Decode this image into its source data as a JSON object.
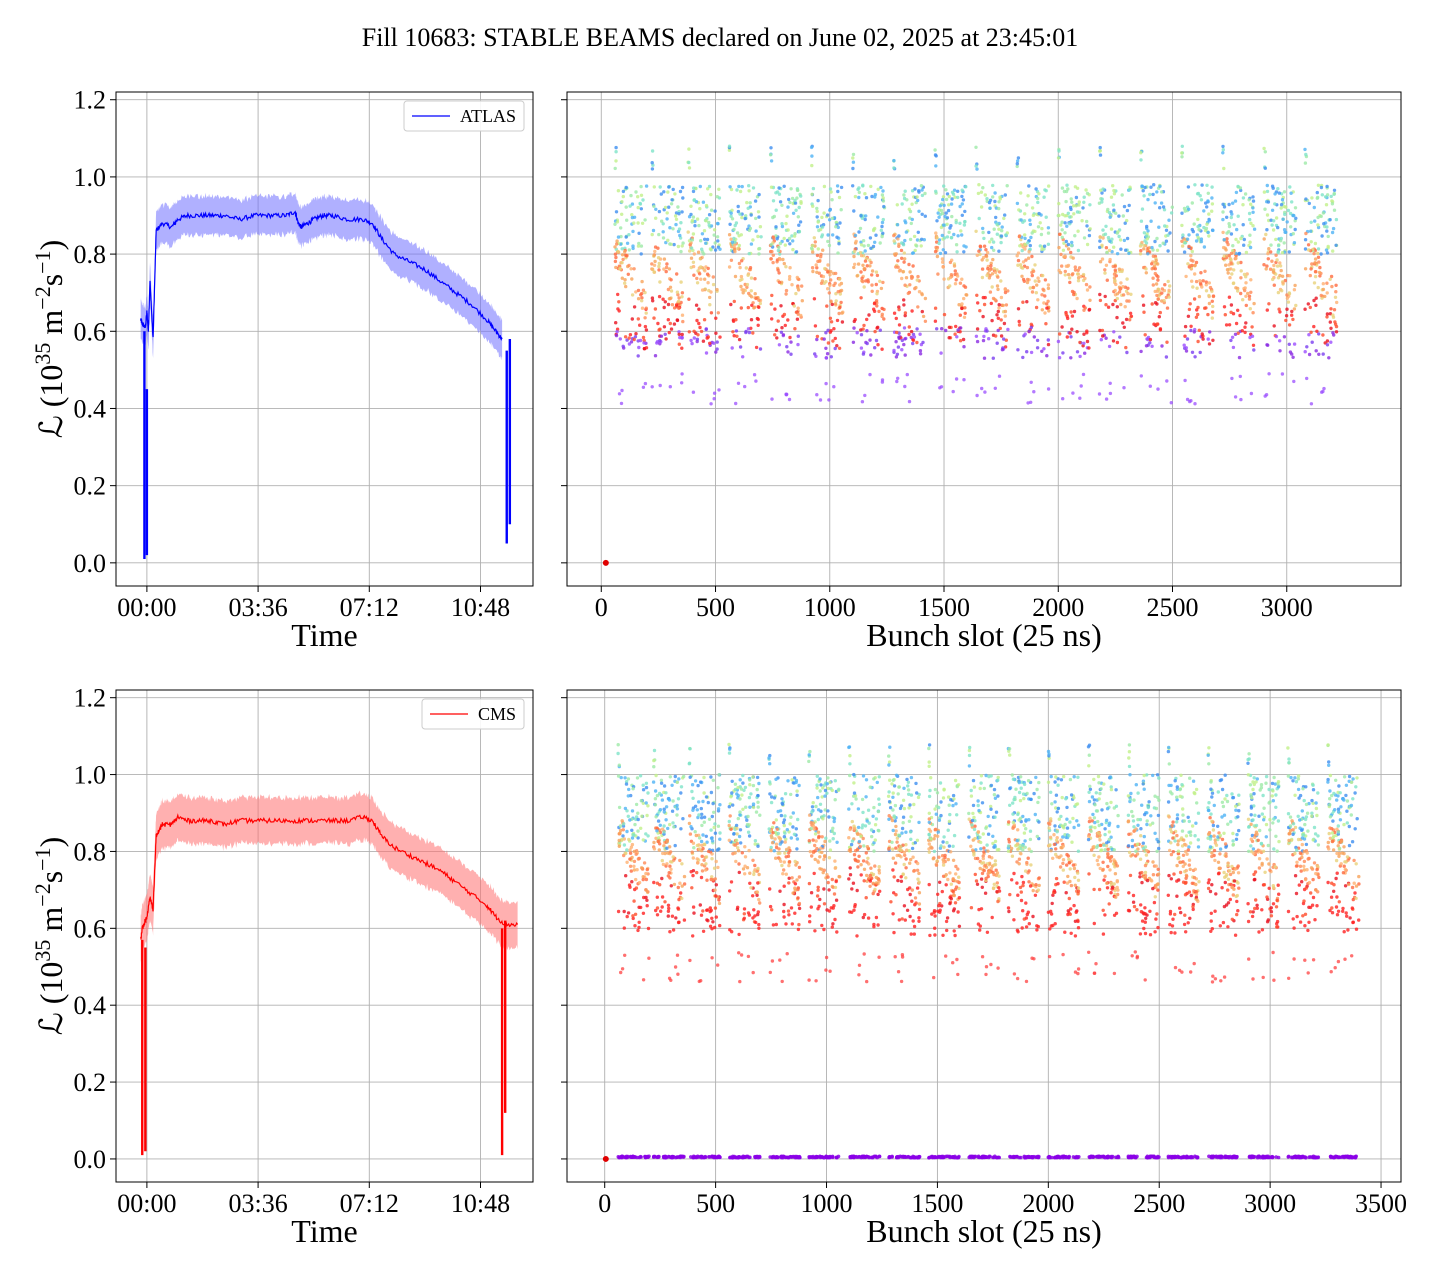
{
  "title": "Fill 10683: STABLE BEAMS declared on June 02, 2025 at 23:45:01",
  "colors": {
    "atlas_line": "#0000ff",
    "atlas_band": "#7070ff",
    "cms_line": "#ff0000",
    "cms_band": "#ff7070",
    "grid": "#b0b0b0"
  },
  "chart_data": [
    {
      "id": "atlas_time",
      "type": "line",
      "xlabel": "Time",
      "ylabel_main": "ℒ (10",
      "ylabel_exp1": "35",
      "ylabel_mid": " m",
      "ylabel_exp2": "−2",
      "ylabel_mid2": "s",
      "ylabel_exp3": "−1",
      "ylabel_end": ")",
      "x_ticks": [
        "00:00",
        "03:36",
        "07:12",
        "10:48"
      ],
      "x_tick_hours": [
        0,
        3.6,
        7.2,
        10.8
      ],
      "xlim_hours": [
        -1.0,
        12.5
      ],
      "y_ticks": [
        "0.0",
        "0.2",
        "0.4",
        "0.6",
        "0.8",
        "1.0",
        "1.2"
      ],
      "ylim": [
        -0.06,
        1.22
      ],
      "legend": "ATLAS",
      "legend_position": "top-right",
      "band_halfwidth": 0.05,
      "series": {
        "x_hours": [
          -0.2,
          -0.15,
          -0.05,
          0.0,
          0.05,
          0.1,
          0.2,
          0.3,
          0.5,
          0.8,
          1.0,
          1.3,
          1.7,
          2.1,
          2.5,
          3.0,
          3.5,
          4.0,
          4.5,
          4.8,
          4.9,
          5.0,
          5.2,
          5.4,
          5.7,
          6.0,
          6.5,
          7.0,
          7.3,
          7.6,
          8.0,
          8.5,
          9.0,
          9.5,
          10.0,
          10.5,
          11.0,
          11.3,
          11.5
        ],
        "values": [
          0.63,
          0.62,
          0.61,
          0.65,
          0.6,
          0.73,
          0.58,
          0.86,
          0.88,
          0.87,
          0.89,
          0.9,
          0.9,
          0.9,
          0.9,
          0.89,
          0.9,
          0.9,
          0.9,
          0.91,
          0.88,
          0.87,
          0.88,
          0.89,
          0.9,
          0.9,
          0.89,
          0.89,
          0.88,
          0.84,
          0.8,
          0.78,
          0.76,
          0.73,
          0.7,
          0.67,
          0.63,
          0.6,
          0.58
        ]
      },
      "dips": [
        {
          "x_hours": -0.08,
          "min": 0.01,
          "max": 0.6
        },
        {
          "x_hours": 0.0,
          "min": 0.02,
          "max": 0.45
        },
        {
          "x_hours": 11.65,
          "min": 0.05,
          "max": 0.55
        },
        {
          "x_hours": 11.75,
          "min": 0.1,
          "max": 0.58
        }
      ]
    },
    {
      "id": "atlas_bunch",
      "type": "scatter",
      "xlabel": "Bunch slot (25 ns)",
      "x_ticks": [
        "0",
        "500",
        "1000",
        "1500",
        "2000",
        "2500",
        "3000"
      ],
      "x_tick_values": [
        0,
        500,
        1000,
        1500,
        2000,
        2500,
        3000
      ],
      "xlim": [
        -150,
        3500
      ],
      "ylim": [
        -0.06,
        1.22
      ],
      "trains_start": [
        60,
        220,
        380,
        560,
        740,
        920,
        1100,
        1280,
        1460,
        1640,
        1820,
        2000,
        2180,
        2360,
        2540,
        2720,
        2900,
        3080
      ],
      "train_length": 140,
      "high_band": [
        0.8,
        0.98
      ],
      "mid_band": [
        0.68,
        0.86
      ],
      "low_band": [
        0.55,
        0.66
      ],
      "zero_point": {
        "x": 20,
        "y": 0.0
      }
    },
    {
      "id": "cms_time",
      "type": "line",
      "xlabel": "Time",
      "ylabel_main": "ℒ (10",
      "ylabel_exp1": "35",
      "ylabel_mid": " m",
      "ylabel_exp2": "−2",
      "ylabel_mid2": "s",
      "ylabel_exp3": "−1",
      "ylabel_end": ")",
      "x_ticks": [
        "00:00",
        "03:36",
        "07:12",
        "10:48"
      ],
      "x_tick_hours": [
        0,
        3.6,
        7.2,
        10.8
      ],
      "xlim_hours": [
        -1.0,
        12.5
      ],
      "y_ticks": [
        "0.0",
        "0.2",
        "0.4",
        "0.6",
        "0.8",
        "1.0",
        "1.2"
      ],
      "ylim": [
        -0.06,
        1.22
      ],
      "legend": "CMS",
      "legend_position": "top-right",
      "band_halfwidth": 0.06,
      "series": {
        "x_hours": [
          -0.2,
          -0.15,
          -0.05,
          0.0,
          0.1,
          0.2,
          0.3,
          0.5,
          0.8,
          1.0,
          1.3,
          1.7,
          2.1,
          2.5,
          3.0,
          3.5,
          4.0,
          4.5,
          5.0,
          5.5,
          6.0,
          6.5,
          7.0,
          7.3,
          7.6,
          8.0,
          8.5,
          9.0,
          9.5,
          10.0,
          10.5,
          11.0,
          11.3,
          11.6,
          12.0
        ],
        "values": [
          0.57,
          0.6,
          0.62,
          0.63,
          0.68,
          0.65,
          0.84,
          0.87,
          0.87,
          0.89,
          0.88,
          0.88,
          0.88,
          0.87,
          0.88,
          0.88,
          0.88,
          0.88,
          0.88,
          0.88,
          0.88,
          0.88,
          0.89,
          0.88,
          0.84,
          0.81,
          0.79,
          0.77,
          0.75,
          0.72,
          0.69,
          0.66,
          0.63,
          0.61,
          0.61
        ]
      },
      "dips": [
        {
          "x_hours": -0.15,
          "min": 0.01,
          "max": 0.57
        },
        {
          "x_hours": -0.05,
          "min": 0.02,
          "max": 0.55
        },
        {
          "x_hours": 11.5,
          "min": 0.01,
          "max": 0.6
        },
        {
          "x_hours": 11.6,
          "min": 0.12,
          "max": 0.62
        }
      ]
    },
    {
      "id": "cms_bunch",
      "type": "scatter",
      "xlabel": "Bunch slot (25 ns)",
      "x_ticks": [
        "0",
        "500",
        "1000",
        "1500",
        "2000",
        "2500",
        "3000",
        "3500"
      ],
      "x_tick_values": [
        0,
        500,
        1000,
        1500,
        2000,
        2500,
        3000,
        3500
      ],
      "xlim": [
        -170,
        3590
      ],
      "ylim": [
        -0.06,
        1.22
      ],
      "trains_start": [
        60,
        220,
        380,
        560,
        740,
        920,
        1100,
        1280,
        1460,
        1640,
        1820,
        2000,
        2180,
        2360,
        2540,
        2720,
        2900,
        3080,
        3260
      ],
      "train_length": 140,
      "high_band": [
        0.8,
        1.0
      ],
      "mid_band": [
        0.68,
        0.9
      ],
      "low_band": [
        0.6,
        0.72
      ],
      "zero_row": {
        "y": 0.005,
        "x_start": 60,
        "x_end": 3420
      },
      "zero_point": {
        "x": 5,
        "y": 0.0
      }
    }
  ]
}
